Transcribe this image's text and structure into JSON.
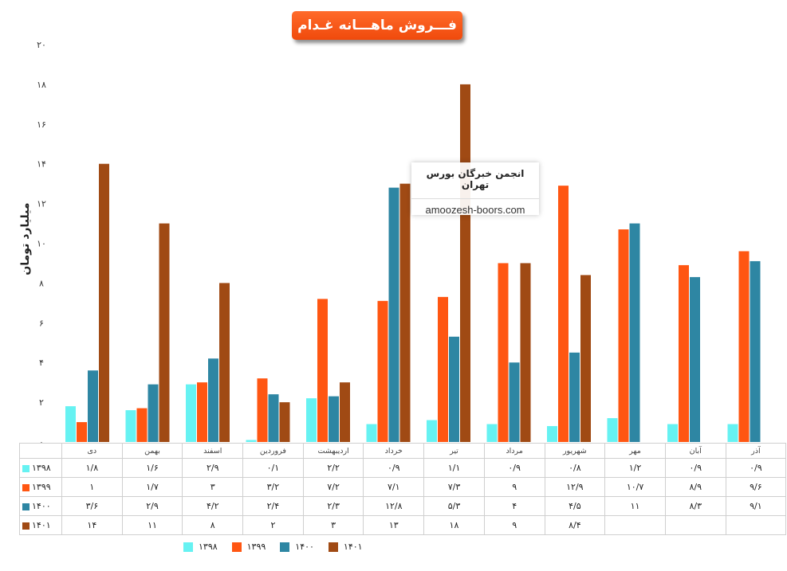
{
  "title": "فـــروش ماهـــانه غـدام",
  "watermark": {
    "line1": "انجمن خبرگان بورس تهران",
    "line2": "amoozesh-boors.com"
  },
  "chart_data": {
    "type": "bar",
    "title": "فـــروش ماهـــانه غـدام",
    "ylabel": "میلیارد تومان",
    "ylim": [
      0,
      20
    ],
    "yticks": [
      "۰",
      "۲",
      "۴",
      "۶",
      "۸",
      "۱۰",
      "۱۲",
      "۱۴",
      "۱۶",
      "۱۸",
      "۲۰"
    ],
    "categories": [
      "دی",
      "بهمن",
      "اسفند",
      "فروردین",
      "اردیبهشت",
      "خرداد",
      "تیر",
      "مرداد",
      "شهریور",
      "مهر",
      "آبان",
      "آذر"
    ],
    "series": [
      {
        "name": "۱۳۹۸",
        "color": "#66f2f2",
        "values": [
          1.8,
          1.6,
          2.9,
          0.1,
          2.2,
          0.9,
          1.1,
          0.9,
          0.8,
          1.2,
          0.9,
          0.9
        ],
        "labels": [
          "۱/۸",
          "۱/۶",
          "۲/۹",
          "۰/۱",
          "۲/۲",
          "۰/۹",
          "۱/۱",
          "۰/۹",
          "۰/۸",
          "۱/۲",
          "۰/۹",
          "۰/۹"
        ]
      },
      {
        "name": "۱۳۹۹",
        "color": "#ff5612",
        "values": [
          1,
          1.7,
          3,
          3.2,
          7.2,
          7.1,
          7.3,
          9,
          12.9,
          10.7,
          8.9,
          9.6
        ],
        "labels": [
          "۱",
          "۱/۷",
          "۳",
          "۳/۲",
          "۷/۲",
          "۷/۱",
          "۷/۳",
          "۹",
          "۱۲/۹",
          "۱۰/۷",
          "۸/۹",
          "۹/۶"
        ]
      },
      {
        "name": "۱۴۰۰",
        "color": "#2e86a3",
        "values": [
          3.6,
          2.9,
          4.2,
          2.4,
          2.3,
          12.8,
          5.3,
          4,
          4.5,
          11,
          8.3,
          9.1
        ],
        "labels": [
          "۳/۶",
          "۲/۹",
          "۴/۲",
          "۲/۴",
          "۲/۳",
          "۱۲/۸",
          "۵/۳",
          "۴",
          "۴/۵",
          "۱۱",
          "۸/۳",
          "۹/۱"
        ]
      },
      {
        "name": "۱۴۰۱",
        "color": "#a04a14",
        "values": [
          14,
          11,
          8,
          2,
          3,
          13,
          18,
          9,
          8.4,
          null,
          null,
          null
        ],
        "labels": [
          "۱۴",
          "۱۱",
          "۸",
          "۲",
          "۳",
          "۱۳",
          "۱۸",
          "۹",
          "۸/۴",
          "",
          "",
          ""
        ]
      }
    ]
  }
}
